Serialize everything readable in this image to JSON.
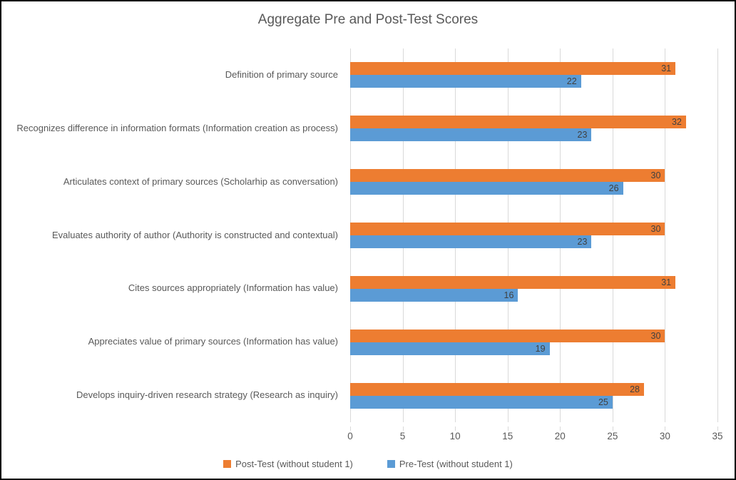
{
  "title": "Aggregate Pre and Post-Test Scores",
  "chart_data": {
    "type": "bar",
    "orientation": "horizontal",
    "title": "Aggregate Pre and Post-Test Scores",
    "categories": [
      "Definition of primary source",
      "Recognizes difference in information formats (Information creation as process)",
      "Articulates context of primary sources (Scholarhip as conversation)",
      "Evaluates authority of author (Authority is constructed and contextual)",
      "Cites sources appropriately (Information has value)",
      "Appreciates value of primary sources (Information has value)",
      "Develops inquiry-driven research strategy (Research as inquiry)"
    ],
    "series": [
      {
        "name": "Post-Test (without student 1)",
        "color": "#ED7D31",
        "values": [
          31,
          32,
          30,
          30,
          31,
          30,
          28
        ]
      },
      {
        "name": "Pre-Test (without student 1)",
        "color": "#5B9BD5",
        "values": [
          22,
          23,
          26,
          23,
          16,
          19,
          25
        ]
      }
    ],
    "xlim": [
      0,
      35
    ],
    "xticks": [
      0,
      5,
      10,
      15,
      20,
      25,
      30,
      35
    ],
    "grid": "vertical",
    "gridline_color": "#D9D9D9",
    "data_labels": "inside-end",
    "data_label_color": "#404040",
    "text_color": "#595959",
    "legend_position": "bottom"
  }
}
